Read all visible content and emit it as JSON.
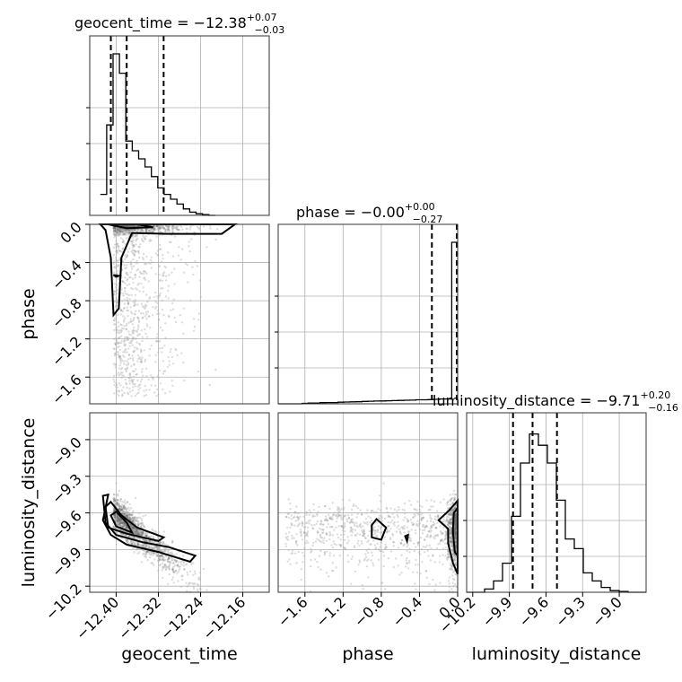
{
  "chart_data": {
    "type": "corner",
    "parameters": [
      "geocent_time",
      "phase",
      "luminosity_distance"
    ],
    "titles": [
      {
        "param": "geocent_time",
        "prefix": "geocent_time = ",
        "median": "−12.38",
        "plus": "+0.07",
        "minus": "−0.03"
      },
      {
        "param": "phase",
        "prefix": "phase = ",
        "median": "−0.00",
        "plus": "+0.00",
        "minus": "−0.27"
      },
      {
        "param": "luminosity_distance",
        "prefix": "luminosity_distance = ",
        "median": "−9.71",
        "plus": "+0.20",
        "minus": "−0.16"
      }
    ],
    "axis_labels": {
      "geocent_time": "geocent_time",
      "phase": "phase",
      "luminosity_distance": "luminosity_distance"
    },
    "ranges": {
      "geocent_time": [
        -12.45,
        -12.11
      ],
      "phase": [
        -1.88,
        0.0
      ],
      "luminosity_distance": [
        -10.25,
        -8.78
      ]
    },
    "ticks": {
      "geocent_time": {
        "values": [
          -12.4,
          -12.32,
          -12.24,
          -12.16
        ],
        "labels": [
          "−12.40",
          "−12.32",
          "−12.24",
          "−12.16"
        ]
      },
      "phase": {
        "values": [
          -1.6,
          -1.2,
          -0.8,
          -0.4,
          0.0
        ],
        "labels": [
          "−1.6",
          "−1.2",
          "−0.8",
          "−0.4",
          "0.0"
        ]
      },
      "luminosity_distance": {
        "values": [
          -10.2,
          -9.9,
          -9.6,
          -9.3,
          -9.0
        ],
        "labels": [
          "−10.2",
          "−9.9",
          "−9.6",
          "−9.3",
          "−9.0"
        ]
      }
    },
    "quantiles": {
      "geocent_time": [
        -12.41,
        -12.38,
        -12.31
      ],
      "phase": [
        -0.27,
        0.0,
        0.0
      ],
      "luminosity_distance": [
        -9.87,
        -9.71,
        -9.51
      ]
    },
    "histograms": {
      "geocent_time": {
        "edges_start": -12.43,
        "bin_width": 0.0121,
        "counts": [
          0.13,
          0.56,
          1.0,
          0.88,
          0.46,
          0.4,
          0.35,
          0.3,
          0.24,
          0.17,
          0.13,
          0.1,
          0.07,
          0.04,
          0.02,
          0.01,
          0.005,
          0.0
        ]
      },
      "phase": {
        "edges_start": -1.88,
        "bin_width": 0.0627,
        "counts": [
          0.0,
          0.0,
          0.0,
          0.0,
          0.003,
          0.005,
          0.005,
          0.007,
          0.008,
          0.008,
          0.01,
          0.011,
          0.012,
          0.013,
          0.015,
          0.016,
          0.017,
          0.018,
          0.019,
          0.02,
          0.021,
          0.022,
          0.023,
          0.025,
          0.025,
          0.026,
          0.028,
          0.03,
          0.03,
          1.0
        ]
      },
      "luminosity_distance": {
        "edges_start": -10.25,
        "bin_width": 0.0735,
        "counts": [
          0.0,
          0.0,
          0.02,
          0.07,
          0.18,
          0.47,
          0.8,
          0.98,
          0.91,
          0.8,
          0.57,
          0.33,
          0.27,
          0.12,
          0.07,
          0.03,
          0.01,
          0.005,
          0.0,
          0.0
        ]
      }
    },
    "contours_2d": {
      "phase_vs_geocent_time": [
        {
          "level": "1sigma",
          "points": [
            [
              -12.415,
              0.0
            ],
            [
              -12.38,
              -0.04
            ],
            [
              -12.33,
              -0.03
            ],
            [
              -12.36,
              0.0
            ]
          ]
        },
        {
          "level": "2sigma",
          "points": [
            [
              -12.43,
              0.0
            ],
            [
              -12.42,
              -0.06
            ],
            [
              -12.41,
              -0.35
            ],
            [
              -12.405,
              -0.95
            ],
            [
              -12.395,
              -0.88
            ],
            [
              -12.39,
              -0.35
            ],
            [
              -12.37,
              -0.09
            ],
            [
              -12.3,
              -0.1
            ],
            [
              -12.2,
              -0.1
            ],
            [
              -12.175,
              0.0
            ]
          ]
        },
        {
          "level": "island",
          "points": [
            [
              -12.405,
              -0.53
            ],
            [
              -12.4,
              -0.55
            ],
            [
              -12.395,
              -0.54
            ]
          ]
        }
      ],
      "luminosity_distance_vs_geocent_time": [
        {
          "level": "1sigma",
          "points": [
            [
              -12.41,
              -9.62
            ],
            [
              -12.4,
              -9.71
            ],
            [
              -12.37,
              -9.76
            ],
            [
              -12.38,
              -9.68
            ],
            [
              -12.4,
              -9.59
            ]
          ]
        },
        {
          "level": "1.5sigma",
          "points": [
            [
              -12.42,
              -9.55
            ],
            [
              -12.415,
              -9.72
            ],
            [
              -12.38,
              -9.77
            ],
            [
              -12.32,
              -9.83
            ],
            [
              -12.31,
              -9.8
            ],
            [
              -12.36,
              -9.72
            ],
            [
              -12.39,
              -9.62
            ],
            [
              -12.41,
              -9.51
            ]
          ]
        },
        {
          "level": "2sigma",
          "points": [
            [
              -12.425,
              -9.46
            ],
            [
              -12.42,
              -9.68
            ],
            [
              -12.4,
              -9.78
            ],
            [
              -12.35,
              -9.84
            ],
            [
              -12.3,
              -9.88
            ],
            [
              -12.25,
              -9.95
            ],
            [
              -12.26,
              -10.0
            ],
            [
              -12.32,
              -9.92
            ],
            [
              -12.38,
              -9.86
            ],
            [
              -12.41,
              -9.78
            ],
            [
              -12.425,
              -9.66
            ],
            [
              -12.415,
              -9.45
            ]
          ]
        }
      ],
      "luminosity_distance_vs_phase": [
        {
          "level": "2sigma",
          "points": [
            [
              0.0,
              -9.56
            ],
            [
              -0.04,
              -9.6
            ],
            [
              -0.05,
              -9.75
            ],
            [
              -0.03,
              -9.92
            ],
            [
              0.0,
              -9.95
            ]
          ]
        },
        {
          "level": "3sigma",
          "points": [
            [
              0.0,
              -9.5
            ],
            [
              -0.09,
              -9.58
            ],
            [
              -0.2,
              -9.66
            ],
            [
              -0.1,
              -9.73
            ],
            [
              -0.1,
              -9.85
            ],
            [
              -0.05,
              -10.01
            ],
            [
              0.0,
              -10.1
            ]
          ]
        },
        {
          "level": "island",
          "points": [
            [
              -0.9,
              -9.7
            ],
            [
              -0.85,
              -9.65
            ],
            [
              -0.75,
              -9.72
            ],
            [
              -0.8,
              -9.82
            ],
            [
              -0.9,
              -9.8
            ]
          ]
        },
        {
          "level": "island",
          "points": [
            [
              -0.55,
              -9.79
            ],
            [
              -0.52,
              -9.78
            ],
            [
              -0.53,
              -9.83
            ]
          ]
        }
      ]
    }
  }
}
